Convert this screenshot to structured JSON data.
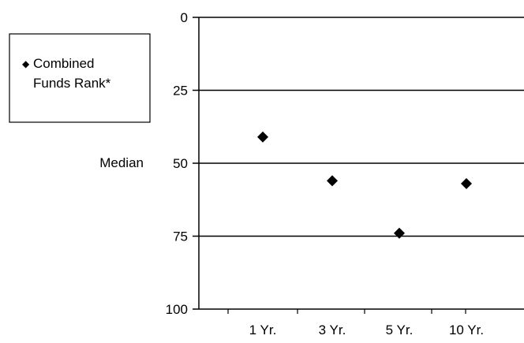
{
  "chart_data": {
    "type": "scatter",
    "title": "",
    "xlabel": "",
    "ylabel": "",
    "categories": [
      "1 Yr.",
      "3 Yr.",
      "5 Yr.",
      "10 Yr."
    ],
    "series": [
      {
        "name": "Combined Funds Rank*",
        "values": [
          41,
          56,
          74,
          57
        ],
        "marker": "diamond",
        "color": "#000000"
      }
    ],
    "ylim": [
      0,
      100
    ],
    "y_inverted": true,
    "y_ticks": [
      0,
      25,
      50,
      75,
      100
    ],
    "y_tick_labels": [
      "0",
      "25",
      "50",
      "75",
      "100"
    ],
    "y_annotation": {
      "text": "Median",
      "at": 50
    },
    "grid": true,
    "legend": {
      "position": "left",
      "marker": "◆",
      "lines": [
        "Combined",
        "Funds Rank*"
      ]
    }
  }
}
